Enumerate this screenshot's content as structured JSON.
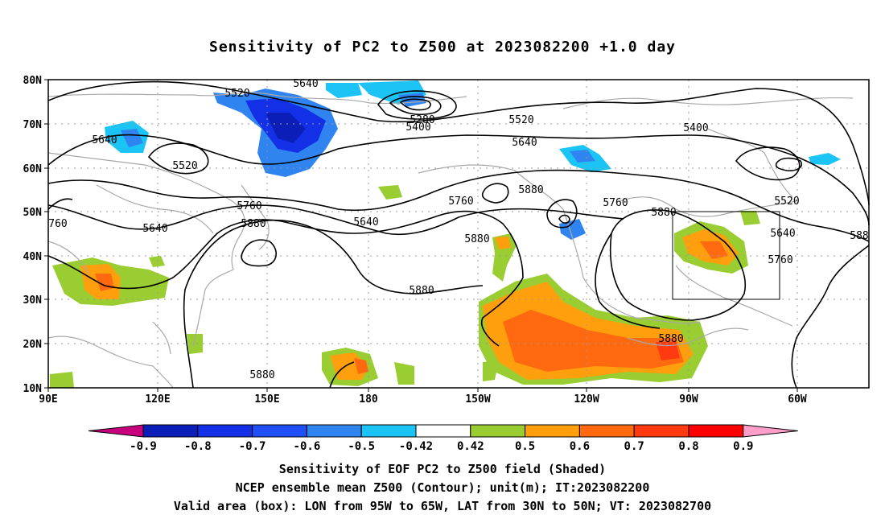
{
  "title": "Sensitivity of PC2 to Z500 at 2023082200 +1.0 day",
  "lat_labels": [
    "80N",
    "70N",
    "60N",
    "50N",
    "40N",
    "30N",
    "20N",
    "10N"
  ],
  "lon_labels": [
    "90E",
    "120E",
    "150E",
    "180",
    "150W",
    "120W",
    "90W",
    "60W"
  ],
  "colorbar": {
    "labels": [
      "-0.9",
      "-0.8",
      "-0.7",
      "-0.6",
      "-0.5",
      "-0.42",
      "0.42",
      "0.5",
      "0.6",
      "0.7",
      "0.8",
      "0.9"
    ],
    "colors": [
      "#c8007d",
      "#0b1fb8",
      "#1430e6",
      "#1f4ff5",
      "#2f84f0",
      "#1cc3f5",
      "#ffffff",
      "#9acd32",
      "#ff9f0d",
      "#ff6a10",
      "#ff3a10",
      "#ff0000",
      "#ff9ec8"
    ]
  },
  "contour_labels": [
    "5280",
    "5400",
    "5520",
    "5640",
    "5520",
    "5400",
    "5640",
    "5520",
    "5640",
    "5760",
    "5880",
    "5760",
    "5640",
    "5880",
    "5760",
    "5880",
    "5640",
    "5760",
    "5880",
    "5880",
    "5520",
    "5640",
    "588",
    "5880",
    "5880",
    "760"
  ],
  "valid_box": {
    "lon_west": "95W",
    "lon_east": "65W",
    "lat_south": "30N",
    "lat_north": "50N"
  },
  "footer": {
    "line1": "Sensitivity of EOF PC2 to Z500 field (Shaded)",
    "line2": "NCEP ensemble mean Z500 (Contour); unit(m); IT:2023082200",
    "line3": "Valid area (box): LON from 95W to 65W, LAT from 30N to 50N; VT: 2023082700"
  }
}
